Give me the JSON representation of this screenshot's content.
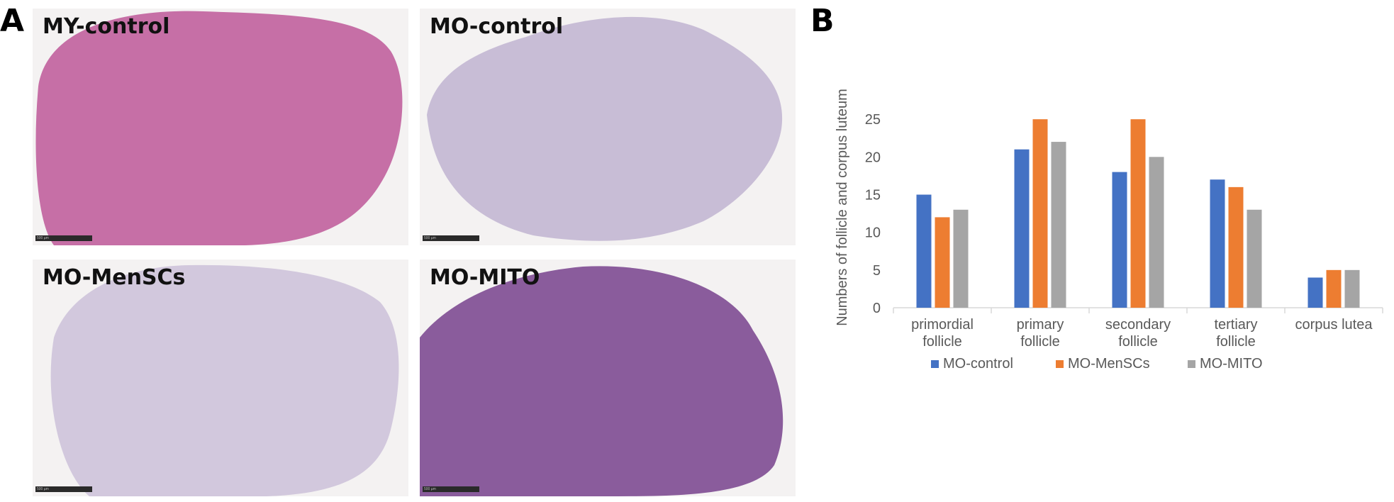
{
  "panel_a": {
    "letter": "A",
    "tiles": [
      {
        "label": "MY-control",
        "tint": "#c66fa6",
        "scale_text": "500 µm"
      },
      {
        "label": "MO-control",
        "tint": "#c8bdd6",
        "scale_text": "500 µm"
      },
      {
        "label": "MO-MenSCs",
        "tint": "#d2c8dd",
        "scale_text": "500 µm"
      },
      {
        "label": "MO-MITO",
        "tint": "#8a5c9c",
        "scale_text": "500 µm"
      }
    ]
  },
  "panel_b": {
    "letter": "B"
  },
  "chart_data": {
    "type": "bar",
    "title": "",
    "xlabel": "",
    "ylabel": "Numbers of follicle and corpus luteum",
    "ylim": [
      0,
      30
    ],
    "yticks": [
      0,
      5,
      10,
      15,
      20,
      25,
      30
    ],
    "grid": false,
    "legend_position": "bottom",
    "categories": [
      [
        "primordial",
        "follicle"
      ],
      [
        "primary",
        "follicle"
      ],
      [
        "secondary",
        "follicle"
      ],
      [
        "tertiary",
        "follicle"
      ],
      [
        "corpus lutea"
      ]
    ],
    "series": [
      {
        "name": "MO-control",
        "color": "#4472c4",
        "values": [
          15,
          21,
          18,
          17,
          4
        ]
      },
      {
        "name": "MO-MenSCs",
        "color": "#ed7d31",
        "values": [
          12,
          25,
          25,
          16,
          5
        ]
      },
      {
        "name": "MO-MITO",
        "color": "#a5a5a5",
        "values": [
          13,
          22,
          20,
          13,
          5
        ]
      }
    ]
  }
}
